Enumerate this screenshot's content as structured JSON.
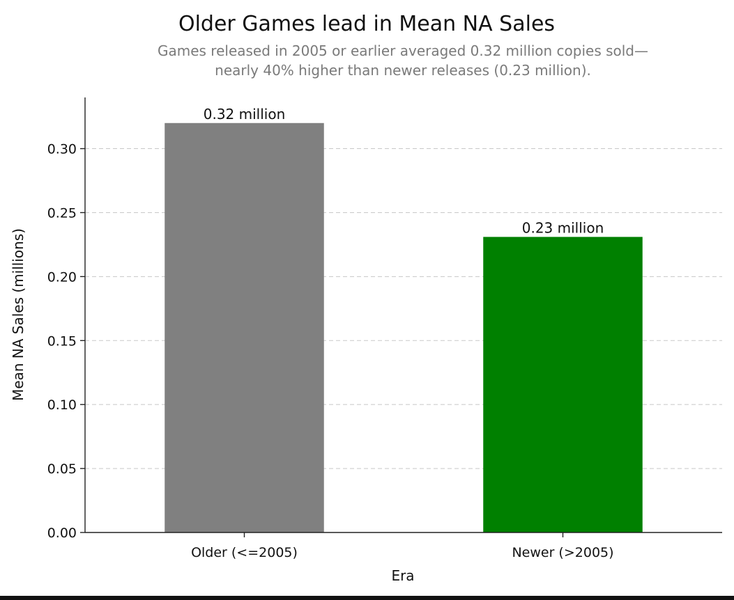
{
  "chart_data": {
    "type": "bar",
    "title": "Older Games lead in Mean NA Sales",
    "subtitle_lines": [
      "Games released in 2005 or earlier averaged 0.32 million copies sold—",
      "nearly 40% higher than newer releases (0.23 million)."
    ],
    "xlabel": "Era",
    "ylabel": "Mean NA Sales (millions)",
    "categories": [
      "Older (<=2005)",
      "Newer (>2005)"
    ],
    "values": [
      0.32,
      0.231
    ],
    "data_labels": [
      "0.32 million",
      "0.23 million"
    ],
    "colors": [
      "#808080",
      "#008000"
    ],
    "ylim": [
      0,
      0.34
    ],
    "yticks": [
      0.0,
      0.05,
      0.1,
      0.15,
      0.2,
      0.25,
      0.3
    ],
    "ytick_labels": [
      "0.00",
      "0.05",
      "0.10",
      "0.15",
      "0.20",
      "0.25",
      "0.30"
    ],
    "grid": "y-dashed",
    "legend": "none"
  }
}
